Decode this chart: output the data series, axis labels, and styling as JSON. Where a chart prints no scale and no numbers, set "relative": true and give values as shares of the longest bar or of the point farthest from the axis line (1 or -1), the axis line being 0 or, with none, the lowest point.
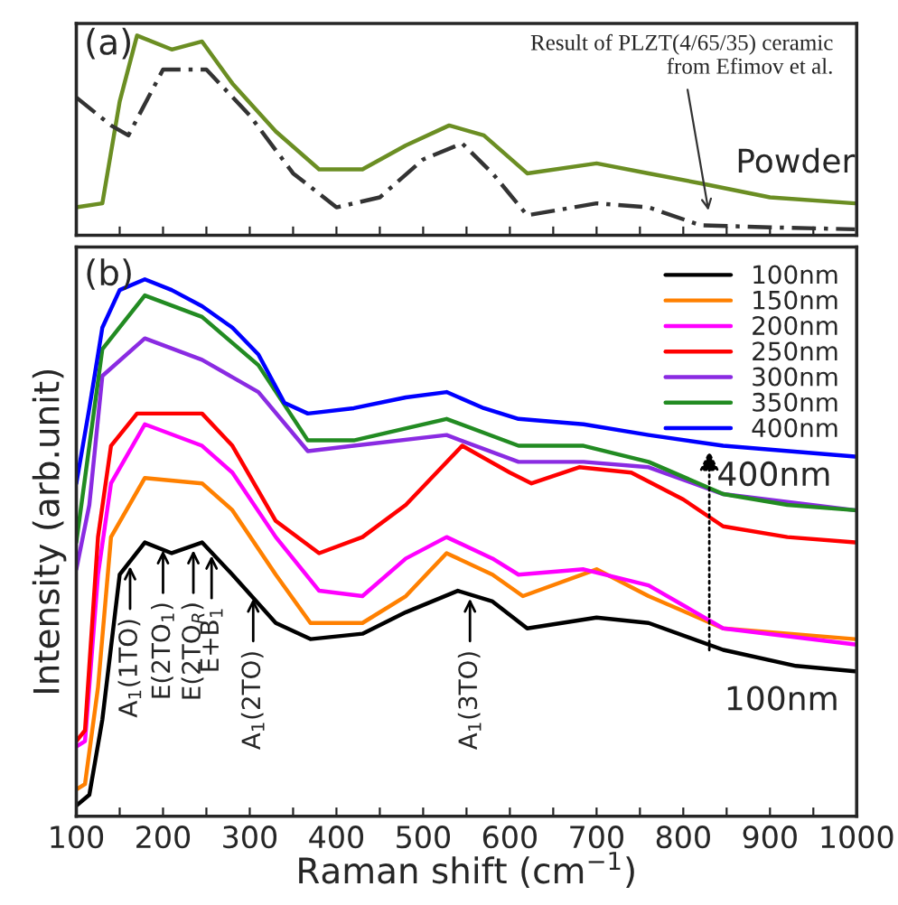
{
  "chart_data": [
    {
      "type": "line",
      "relative": true,
      "tick_labels": false,
      "xlim": [
        100,
        1000
      ],
      "xticks": [
        100,
        {
          "value": 150,
          "label": null
        },
        200,
        {
          "value": 250,
          "label": null
        },
        300,
        {
          "value": 350,
          "label": null
        },
        400,
        {
          "value": 450,
          "label": null
        },
        500,
        {
          "value": 550,
          "label": null
        },
        600,
        {
          "value": 650,
          "label": null
        },
        700,
        {
          "value": 750,
          "label": null
        },
        800,
        {
          "value": 850,
          "label": null
        },
        900,
        {
          "value": 950,
          "label": null
        },
        1000
      ],
      "annotations": [
        "(a)",
        {
          "text": "Result of PLZT(4/65/35) ceramic\nfrom Efimov et al.",
          "x": 830,
          "y": 0.1
        }
      ],
      "series": [
        {
          "name": "Powder",
          "color": "#6b8e23",
          "x": [
            100,
            130,
            150,
            170,
            210,
            245,
            280,
            330,
            380,
            430,
            480,
            530,
            570,
            620,
            700,
            760,
            820,
            900,
            998
          ],
          "values": [
            0.14,
            0.16,
            0.67,
            1.0,
            0.93,
            0.97,
            0.76,
            0.52,
            0.33,
            0.33,
            0.45,
            0.55,
            0.5,
            0.31,
            0.36,
            0.31,
            0.26,
            0.19,
            0.16
          ]
        },
        {
          "color": "#333333",
          "line_style": "dashed",
          "x": [
            100,
            140,
            160,
            200,
            250,
            300,
            350,
            400,
            450,
            500,
            545,
            580,
            620,
            700,
            760,
            820,
            900,
            998
          ],
          "values": [
            0.69,
            0.55,
            0.5,
            0.83,
            0.83,
            0.6,
            0.31,
            0.14,
            0.19,
            0.38,
            0.46,
            0.31,
            0.1,
            0.16,
            0.14,
            0.05,
            0.04,
            0.03
          ]
        }
      ]
    },
    {
      "type": "line",
      "relative": true,
      "tick_labels": "x",
      "xlim": [
        100,
        1000
      ],
      "xticks": [
        100,
        {
          "value": 150,
          "label": null
        },
        200,
        {
          "value": 250,
          "label": null
        },
        300,
        {
          "value": 350,
          "label": null
        },
        400,
        {
          "value": 450,
          "label": null
        },
        500,
        {
          "value": 550,
          "label": null
        },
        600,
        {
          "value": 650,
          "label": null
        },
        700,
        {
          "value": 750,
          "label": null
        },
        800,
        {
          "value": 850,
          "label": null
        },
        900,
        {
          "value": 950,
          "label": null
        },
        1000
      ],
      "xlabel": "Raman shift (cm$^{−1}$)",
      "ylabel": "Intensity (arb.unit)",
      "legend": "top right",
      "annotations": [
        "(b)",
        {
          "text": "A$_{1}$(1TO)",
          "x": 162,
          "y": 0.47
        },
        {
          "text": "E(2TO$_{1}$)",
          "x": 200,
          "y": 0.5
        },
        {
          "text": "E(2TO$_{R}$)",
          "x": 235,
          "y": 0.5
        },
        {
          "text": "E+B$_{1}$",
          "x": 256,
          "y": 0.49
        },
        {
          "text": "A$_{1}$(2TO)",
          "x": 304,
          "y": 0.41
        },
        {
          "text": "A$_{1}$(3TO)",
          "x": 554,
          "y": 0.41
        },
        {
          "text": "400nm",
          "x": 830,
          "y": 0.69
        },
        {
          "text": "100nm",
          "x": 830,
          "y": 0.3
        }
      ],
      "series": [
        {
          "name": "100nm",
          "color": "#000000",
          "x": [
            100,
            115,
            130,
            150,
            179,
            210,
            245,
            280,
            330,
            370,
            430,
            480,
            540,
            580,
            620,
            700,
            760,
            846,
            930,
            998
          ],
          "values": [
            0.02,
            0.04,
            0.18,
            0.45,
            0.51,
            0.49,
            0.51,
            0.45,
            0.36,
            0.33,
            0.34,
            0.38,
            0.42,
            0.4,
            0.35,
            0.37,
            0.36,
            0.31,
            0.28,
            0.27
          ]
        },
        {
          "name": "150nm",
          "color": "#ff8000",
          "x": [
            100,
            110,
            125,
            140,
            179,
            245,
            280,
            330,
            370,
            430,
            480,
            527,
            580,
            615,
            700,
            760,
            846,
            998
          ],
          "values": [
            0.05,
            0.06,
            0.24,
            0.52,
            0.63,
            0.62,
            0.57,
            0.45,
            0.36,
            0.36,
            0.41,
            0.49,
            0.45,
            0.41,
            0.46,
            0.41,
            0.35,
            0.33
          ]
        },
        {
          "name": "200nm",
          "color": "#ff00ff",
          "x": [
            100,
            110,
            125,
            140,
            179,
            245,
            280,
            330,
            380,
            430,
            480,
            527,
            580,
            610,
            685,
            760,
            846,
            998
          ],
          "values": [
            0.13,
            0.14,
            0.45,
            0.62,
            0.73,
            0.69,
            0.64,
            0.52,
            0.42,
            0.41,
            0.48,
            0.52,
            0.48,
            0.45,
            0.46,
            0.43,
            0.35,
            0.32
          ]
        },
        {
          "name": "250nm",
          "color": "#ff0000",
          "x": [
            100,
            110,
            125,
            140,
            170,
            245,
            280,
            330,
            380,
            430,
            480,
            545,
            600,
            625,
            680,
            740,
            800,
            846,
            920,
            998
          ],
          "values": [
            0.14,
            0.16,
            0.52,
            0.69,
            0.75,
            0.75,
            0.69,
            0.55,
            0.49,
            0.52,
            0.58,
            0.69,
            0.64,
            0.62,
            0.65,
            0.64,
            0.59,
            0.54,
            0.52,
            0.51
          ]
        },
        {
          "name": "300nm",
          "color": "#8a2be2",
          "x": [
            100,
            115,
            130,
            179,
            245,
            310,
            367,
            420,
            527,
            610,
            685,
            760,
            846,
            998
          ],
          "values": [
            0.46,
            0.58,
            0.82,
            0.89,
            0.85,
            0.79,
            0.68,
            0.69,
            0.71,
            0.66,
            0.66,
            0.65,
            0.6,
            0.57
          ]
        },
        {
          "name": "350nm",
          "color": "#228b22",
          "x": [
            100,
            115,
            130,
            179,
            245,
            310,
            367,
            420,
            527,
            610,
            685,
            760,
            846,
            920,
            998
          ],
          "values": [
            0.51,
            0.69,
            0.87,
            0.97,
            0.93,
            0.84,
            0.7,
            0.7,
            0.74,
            0.69,
            0.69,
            0.66,
            0.6,
            0.58,
            0.57
          ]
        },
        {
          "name": "400nm",
          "color": "#0000ff",
          "x": [
            100,
            115,
            130,
            150,
            179,
            210,
            245,
            280,
            310,
            340,
            367,
            420,
            480,
            527,
            570,
            610,
            685,
            760,
            846,
            998
          ],
          "values": [
            0.62,
            0.76,
            0.91,
            0.98,
            1.0,
            0.98,
            0.95,
            0.91,
            0.86,
            0.77,
            0.75,
            0.76,
            0.78,
            0.79,
            0.76,
            0.74,
            0.73,
            0.71,
            0.69,
            0.67
          ]
        }
      ]
    }
  ]
}
